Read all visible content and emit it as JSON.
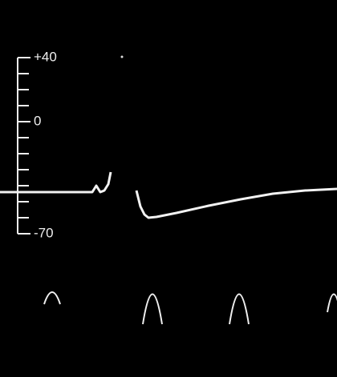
{
  "chart_data": {
    "type": "line",
    "color": "#f2f2f2",
    "x": [
      0,
      100,
      115,
      120,
      125,
      130,
      135,
      138,
      155,
      170,
      175,
      180,
      185,
      195,
      220,
      260,
      300,
      340,
      380,
      420
    ],
    "values": [
      -44,
      -44,
      -44,
      -40,
      -44,
      -43,
      -39,
      -31.5,
      null,
      -43,
      -53,
      -58,
      -60,
      -59.5,
      -57,
      -52.5,
      -48.5,
      -45,
      -43,
      -42
    ],
    "xlim": [
      0,
      420
    ],
    "ylim": [
      -70,
      40
    ],
    "yticks": [
      {
        "value": 40,
        "label": "+40"
      },
      0,
      -70
    ],
    "minor_yticks": [
      30,
      20,
      10,
      -10,
      -20,
      -30,
      -40,
      -50,
      -60
    ]
  }
}
